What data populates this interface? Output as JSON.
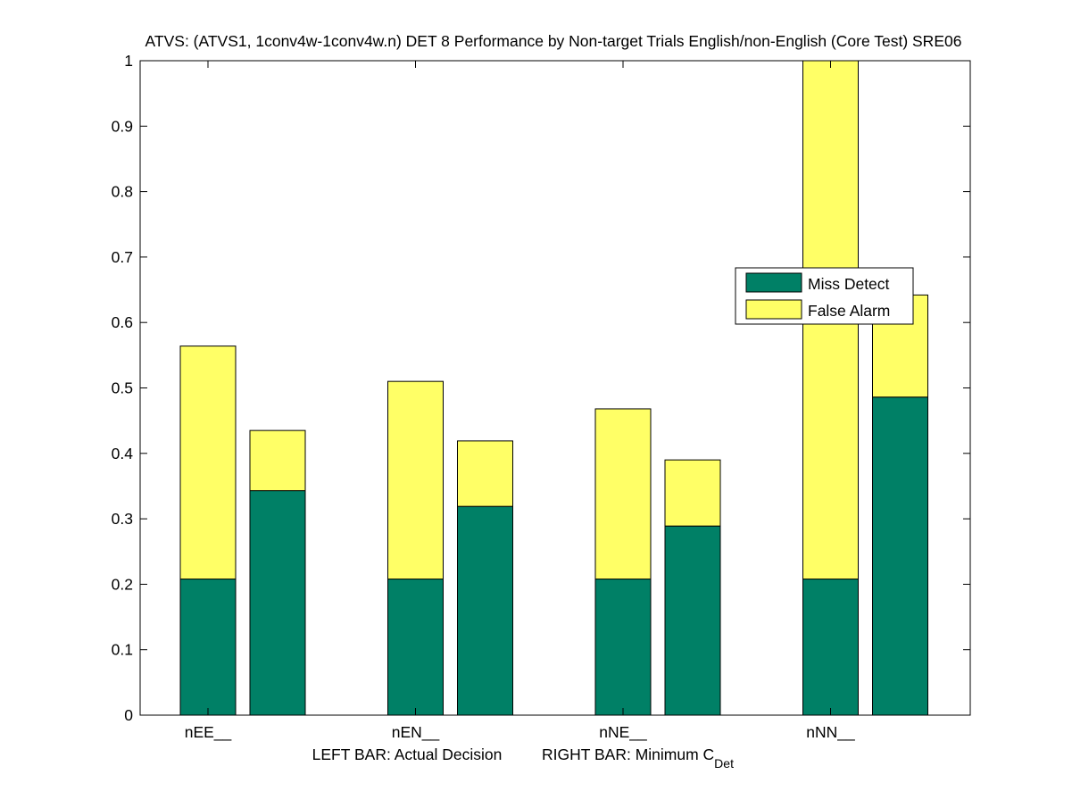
{
  "chart_data": {
    "type": "bar",
    "stacked": true,
    "title": "ATVS: (ATVS1, 1conv4w-1conv4w.n) DET 8 Performance by Non-target Trials English/non-English (Core Test) SRE06",
    "categories": [
      "nEE__",
      "nEN__",
      "nNE__",
      "nNN__"
    ],
    "xlabel": {
      "left": "LEFT BAR: Actual Decision",
      "right": "RIGHT BAR: Minimum C",
      "right_subscript": "Det"
    },
    "ylim": [
      0,
      1
    ],
    "yticks": [
      0,
      0.1,
      0.2,
      0.3,
      0.4,
      0.5,
      0.6,
      0.7,
      0.8,
      0.9,
      1
    ],
    "ytick_labels": [
      "0",
      "0.1",
      "0.2",
      "0.3",
      "0.4",
      "0.5",
      "0.6",
      "0.7",
      "0.8",
      "0.9",
      "1"
    ],
    "grid": false,
    "legend_position": "right",
    "bars_per_category": [
      "Actual Decision",
      "Minimum C_Det"
    ],
    "series": [
      {
        "name": "Miss Detect",
        "color": "#008066",
        "actual": [
          0.208,
          0.208,
          0.208,
          0.208
        ],
        "minimum": [
          0.343,
          0.319,
          0.289,
          0.486
        ]
      },
      {
        "name": "False Alarm",
        "color": "#ffff66",
        "actual": [
          0.356,
          0.302,
          0.26,
          0.792
        ],
        "minimum": [
          0.092,
          0.1,
          0.101,
          0.156
        ]
      }
    ]
  }
}
